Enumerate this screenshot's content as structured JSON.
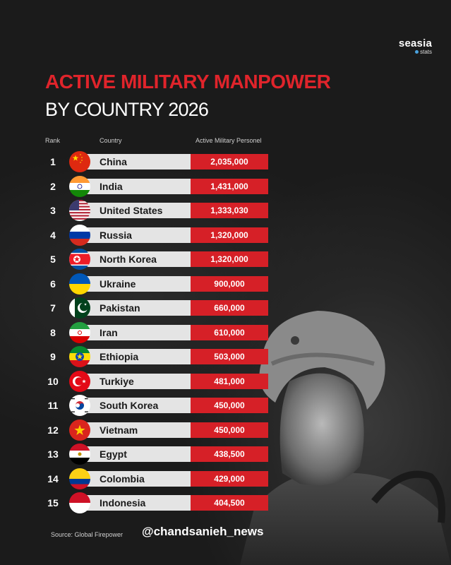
{
  "brand": {
    "logo_main": "seasia",
    "logo_sub": "stats"
  },
  "chart_data": {
    "type": "table",
    "title": "ACTIVE MILITARY MANPOWER",
    "subtitle": "BY COUNTRY 2026",
    "columns": [
      "Rank",
      "Country",
      "Active Military Personel"
    ],
    "rows": [
      {
        "rank": "1",
        "country": "China",
        "value": "2,035,000",
        "flag": "china-flag-icon"
      },
      {
        "rank": "2",
        "country": "India",
        "value": "1,431,000",
        "flag": "india-flag-icon"
      },
      {
        "rank": "3",
        "country": "United States",
        "value": "1,333,030",
        "flag": "usa-flag-icon"
      },
      {
        "rank": "4",
        "country": "Russia",
        "value": "1,320,000",
        "flag": "russia-flag-icon"
      },
      {
        "rank": "5",
        "country": "North Korea",
        "value": "1,320,000",
        "flag": "north-korea-flag-icon"
      },
      {
        "rank": "6",
        "country": "Ukraine",
        "value": "900,000",
        "flag": "ukraine-flag-icon"
      },
      {
        "rank": "7",
        "country": "Pakistan",
        "value": "660,000",
        "flag": "pakistan-flag-icon"
      },
      {
        "rank": "8",
        "country": "Iran",
        "value": "610,000",
        "flag": "iran-flag-icon"
      },
      {
        "rank": "9",
        "country": "Ethiopia",
        "value": "503,000",
        "flag": "ethiopia-flag-icon"
      },
      {
        "rank": "10",
        "country": "Turkiye",
        "value": "481,000",
        "flag": "turkiye-flag-icon"
      },
      {
        "rank": "11",
        "country": "South Korea",
        "value": "450,000",
        "flag": "south-korea-flag-icon"
      },
      {
        "rank": "12",
        "country": "Vietnam",
        "value": "450,000",
        "flag": "vietnam-flag-icon"
      },
      {
        "rank": "13",
        "country": "Egypt",
        "value": "438,500",
        "flag": "egypt-flag-icon"
      },
      {
        "rank": "14",
        "country": "Colombia",
        "value": "429,000",
        "flag": "colombia-flag-icon"
      },
      {
        "rank": "15",
        "country": "Indonesia",
        "value": "404,500",
        "flag": "indonesia-flag-icon"
      }
    ],
    "colors": {
      "accent": "#d62027",
      "title_red": "#e0242b",
      "row_bg": "#e4e4e4",
      "background": "#1d1d1d"
    }
  },
  "footer": {
    "source": "Source: Global Firepower",
    "handle": "@chandsanieh_news"
  }
}
